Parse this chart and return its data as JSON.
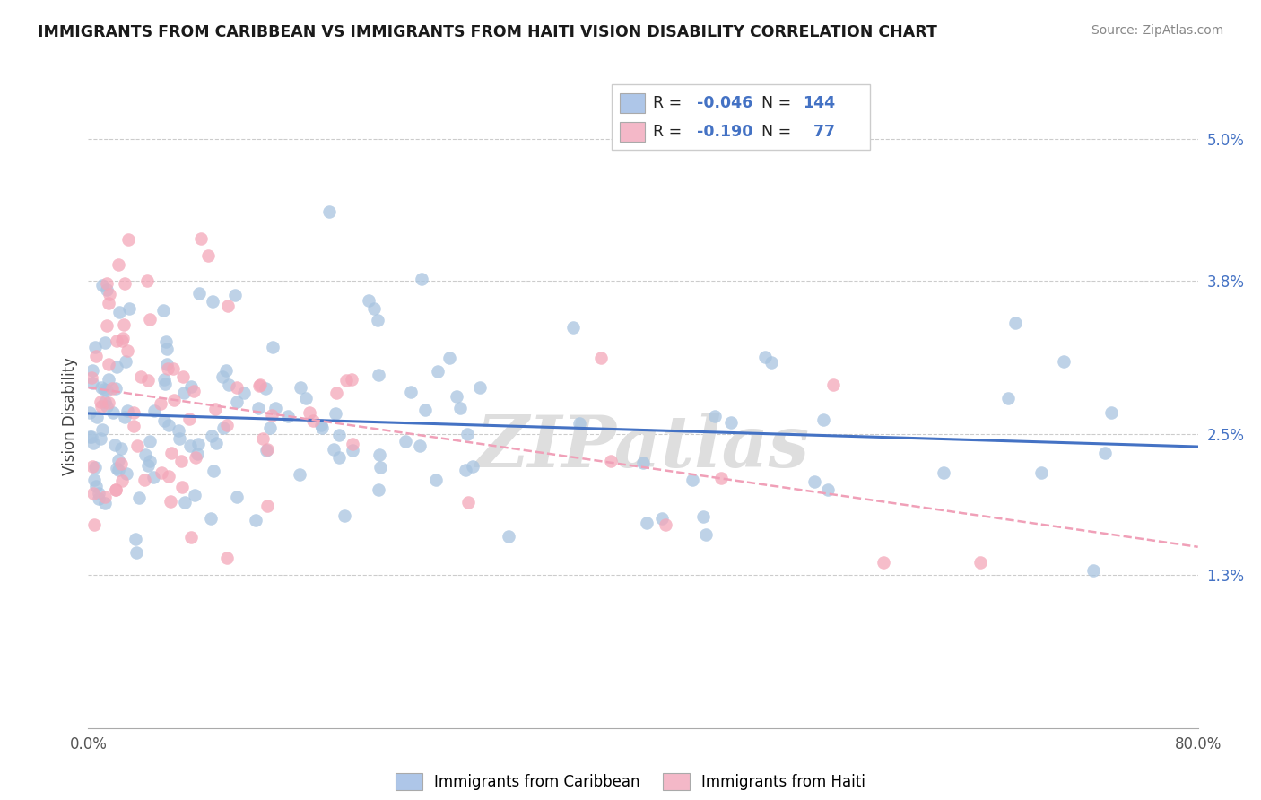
{
  "title": "IMMIGRANTS FROM CARIBBEAN VS IMMIGRANTS FROM HAITI VISION DISABILITY CORRELATION CHART",
  "source_text": "Source: ZipAtlas.com",
  "ylabel": "Vision Disability",
  "xlim": [
    0.0,
    80.0
  ],
  "ylim": [
    0.0,
    5.3
  ],
  "ytick_positions": [
    1.3,
    2.5,
    3.8,
    5.0
  ],
  "ytick_labels": [
    "1.3%",
    "2.5%",
    "3.8%",
    "5.0%"
  ],
  "caribbean_R": -0.046,
  "caribbean_N": 144,
  "haiti_R": -0.19,
  "haiti_N": 77,
  "caribbean_color": "#a8c4e0",
  "haiti_color": "#f4a7b9",
  "caribbean_line_color": "#4472c4",
  "haiti_line_color": "#f0a0b8",
  "grid_color": "#cccccc",
  "background_color": "#ffffff",
  "watermark": "ZIPatlas",
  "legend_box_color_caribbean": "#aec6e8",
  "legend_box_color_haiti": "#f4b8c8",
  "legend_R_color": "#4472c4",
  "legend_N_color": "#4472c4"
}
